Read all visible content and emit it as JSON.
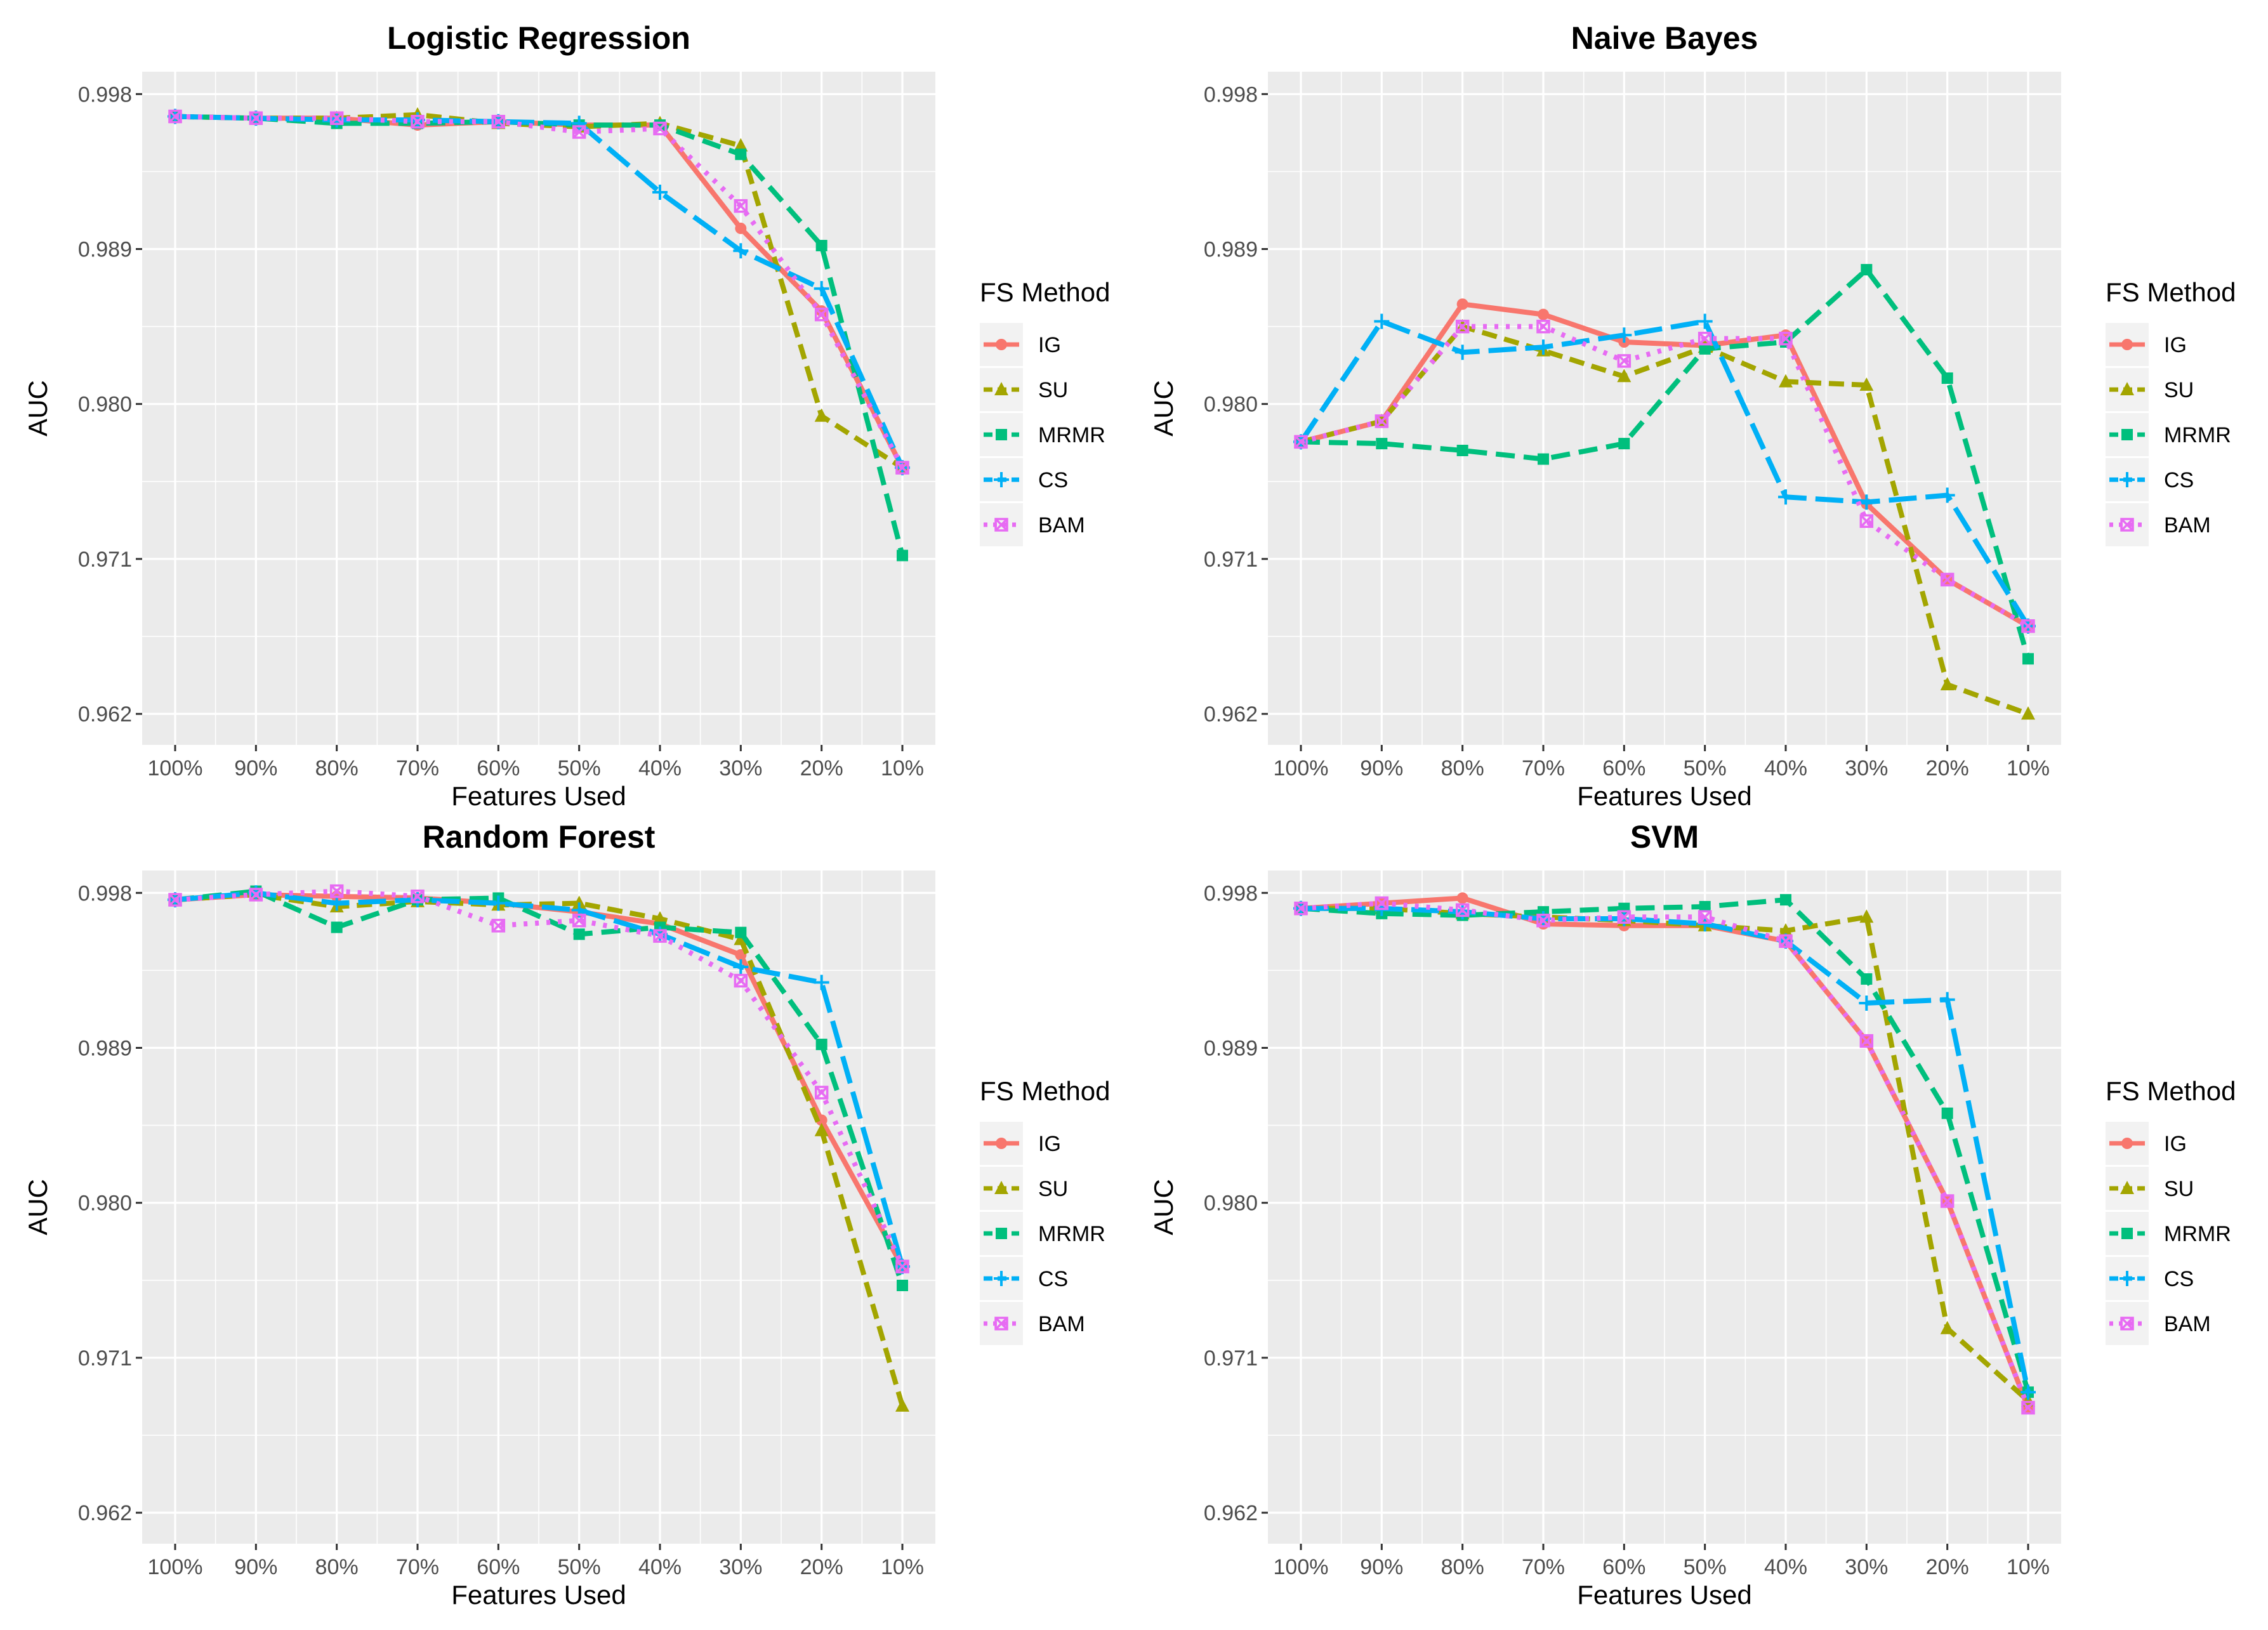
{
  "chart_data": [
    {
      "type": "line",
      "title": "Logistic Regression",
      "xlabel": "Features Used",
      "ylabel": "AUC",
      "categories": [
        "100%",
        "90%",
        "80%",
        "70%",
        "60%",
        "50%",
        "40%",
        "30%",
        "20%",
        "10%"
      ],
      "yticks": [
        "0.998",
        "0.989",
        "0.980",
        "0.971",
        "0.962"
      ],
      "ylim": [
        0.9602,
        0.9993
      ],
      "legend": {
        "title": "FS Method",
        "position": "right"
      },
      "series": [
        {
          "name": "IG",
          "values": [
            0.9967,
            0.9966,
            0.9966,
            0.9962,
            0.9964,
            0.9962,
            0.9962,
            0.9902,
            0.9854,
            0.9763
          ]
        },
        {
          "name": "SU",
          "values": [
            0.9967,
            0.9966,
            0.9966,
            0.9968,
            0.9963,
            0.9961,
            0.9963,
            0.995,
            0.9793,
            0.9763
          ]
        },
        {
          "name": "MRMR",
          "values": [
            0.9967,
            0.9966,
            0.9963,
            0.9963,
            0.9964,
            0.9962,
            0.9962,
            0.9945,
            0.9892,
            0.9712
          ]
        },
        {
          "name": "CS",
          "values": [
            0.9967,
            0.9966,
            0.9965,
            0.9965,
            0.9964,
            0.9963,
            0.9923,
            0.9889,
            0.9867,
            0.9763
          ]
        },
        {
          "name": "BAM",
          "values": [
            0.9967,
            0.9966,
            0.9966,
            0.9964,
            0.9964,
            0.9958,
            0.996,
            0.9915,
            0.9852,
            0.9763
          ]
        }
      ]
    },
    {
      "type": "line",
      "title": "Naive Bayes",
      "xlabel": "Features Used",
      "ylabel": "AUC",
      "categories": [
        "100%",
        "90%",
        "80%",
        "70%",
        "60%",
        "50%",
        "40%",
        "30%",
        "20%",
        "10%"
      ],
      "yticks": [
        "0.998",
        "0.989",
        "0.980",
        "0.971",
        "0.962"
      ],
      "ylim": [
        0.9602,
        0.9993
      ],
      "legend": {
        "title": "FS Method",
        "position": "right"
      },
      "series": [
        {
          "name": "IG",
          "values": [
            0.9778,
            0.979,
            0.9858,
            0.9852,
            0.9836,
            0.9834,
            0.984,
            0.9742,
            0.9698,
            0.9671
          ]
        },
        {
          "name": "SU",
          "values": [
            0.9778,
            0.979,
            0.9845,
            0.9831,
            0.9816,
            0.9833,
            0.9813,
            0.9811,
            0.9637,
            0.962
          ]
        },
        {
          "name": "MRMR",
          "values": [
            0.9778,
            0.9777,
            0.9773,
            0.9768,
            0.9777,
            0.9832,
            0.9836,
            0.9878,
            0.9815,
            0.9652
          ]
        },
        {
          "name": "CS",
          "values": [
            0.9778,
            0.9848,
            0.983,
            0.9833,
            0.984,
            0.9848,
            0.9746,
            0.9743,
            0.9747,
            0.9671
          ]
        },
        {
          "name": "BAM",
          "values": [
            0.9778,
            0.979,
            0.9845,
            0.9845,
            0.9825,
            0.9838,
            0.9838,
            0.9732,
            0.9698,
            0.9671
          ]
        }
      ]
    },
    {
      "type": "line",
      "title": "Random Forest",
      "xlabel": "Features Used",
      "ylabel": "AUC",
      "categories": [
        "100%",
        "90%",
        "80%",
        "70%",
        "60%",
        "50%",
        "40%",
        "30%",
        "20%",
        "10%"
      ],
      "yticks": [
        "0.998",
        "0.989",
        "0.980",
        "0.971",
        "0.962"
      ],
      "ylim": [
        0.9602,
        0.9993
      ],
      "legend": {
        "title": "FS Method",
        "position": "right"
      },
      "series": [
        {
          "name": "IG",
          "values": [
            0.9976,
            0.9979,
            0.9978,
            0.9977,
            0.9974,
            0.9969,
            0.9962,
            0.9944,
            0.9848,
            0.9763
          ]
        },
        {
          "name": "SU",
          "values": [
            0.9976,
            0.9979,
            0.9972,
            0.9975,
            0.9973,
            0.9974,
            0.9965,
            0.9953,
            0.9842,
            0.9682
          ]
        },
        {
          "name": "MRMR",
          "values": [
            0.9976,
            0.9981,
            0.996,
            0.9976,
            0.9977,
            0.9956,
            0.996,
            0.9957,
            0.9892,
            0.9752
          ]
        },
        {
          "name": "CS",
          "values": [
            0.9976,
            0.998,
            0.9974,
            0.9976,
            0.9974,
            0.997,
            0.9956,
            0.9937,
            0.9928,
            0.9763
          ]
        },
        {
          "name": "BAM",
          "values": [
            0.9976,
            0.9979,
            0.9981,
            0.9978,
            0.9961,
            0.9964,
            0.9955,
            0.9929,
            0.9864,
            0.9763
          ]
        }
      ]
    },
    {
      "type": "line",
      "title": "SVM",
      "xlabel": "Features Used",
      "ylabel": "AUC",
      "categories": [
        "100%",
        "90%",
        "80%",
        "70%",
        "60%",
        "50%",
        "40%",
        "30%",
        "20%",
        "10%"
      ],
      "yticks": [
        "0.998",
        "0.989",
        "0.980",
        "0.971",
        "0.962"
      ],
      "ylim": [
        0.9602,
        0.9993
      ],
      "legend": {
        "title": "FS Method",
        "position": "right"
      },
      "series": [
        {
          "name": "IG",
          "values": [
            0.9971,
            0.9974,
            0.9977,
            0.9962,
            0.9961,
            0.9961,
            0.9952,
            0.9894,
            0.9801,
            0.9681
          ]
        },
        {
          "name": "SU",
          "values": [
            0.9971,
            0.9971,
            0.9968,
            0.9966,
            0.9964,
            0.9961,
            0.9958,
            0.9966,
            0.9727,
            0.9685
          ]
        },
        {
          "name": "MRMR",
          "values": [
            0.9971,
            0.9968,
            0.9967,
            0.9969,
            0.9971,
            0.9972,
            0.9976,
            0.993,
            0.9852,
            0.969
          ]
        },
        {
          "name": "CS",
          "values": [
            0.9971,
            0.9971,
            0.9969,
            0.9965,
            0.9965,
            0.9962,
            0.9952,
            0.9916,
            0.9918,
            0.969
          ]
        },
        {
          "name": "BAM",
          "values": [
            0.9971,
            0.9974,
            0.997,
            0.9964,
            0.9966,
            0.9966,
            0.9952,
            0.9894,
            0.9801,
            0.9681
          ]
        }
      ]
    }
  ],
  "series_colors": {
    "IG": "#f8766d",
    "SU": "#a3a500",
    "MRMR": "#00bf7d",
    "CS": "#00b0f6",
    "BAM": "#e76bf3"
  },
  "series_markers": {
    "IG": "circle",
    "SU": "triangle",
    "MRMR": "square",
    "CS": "plus",
    "BAM": "boxed-x"
  }
}
